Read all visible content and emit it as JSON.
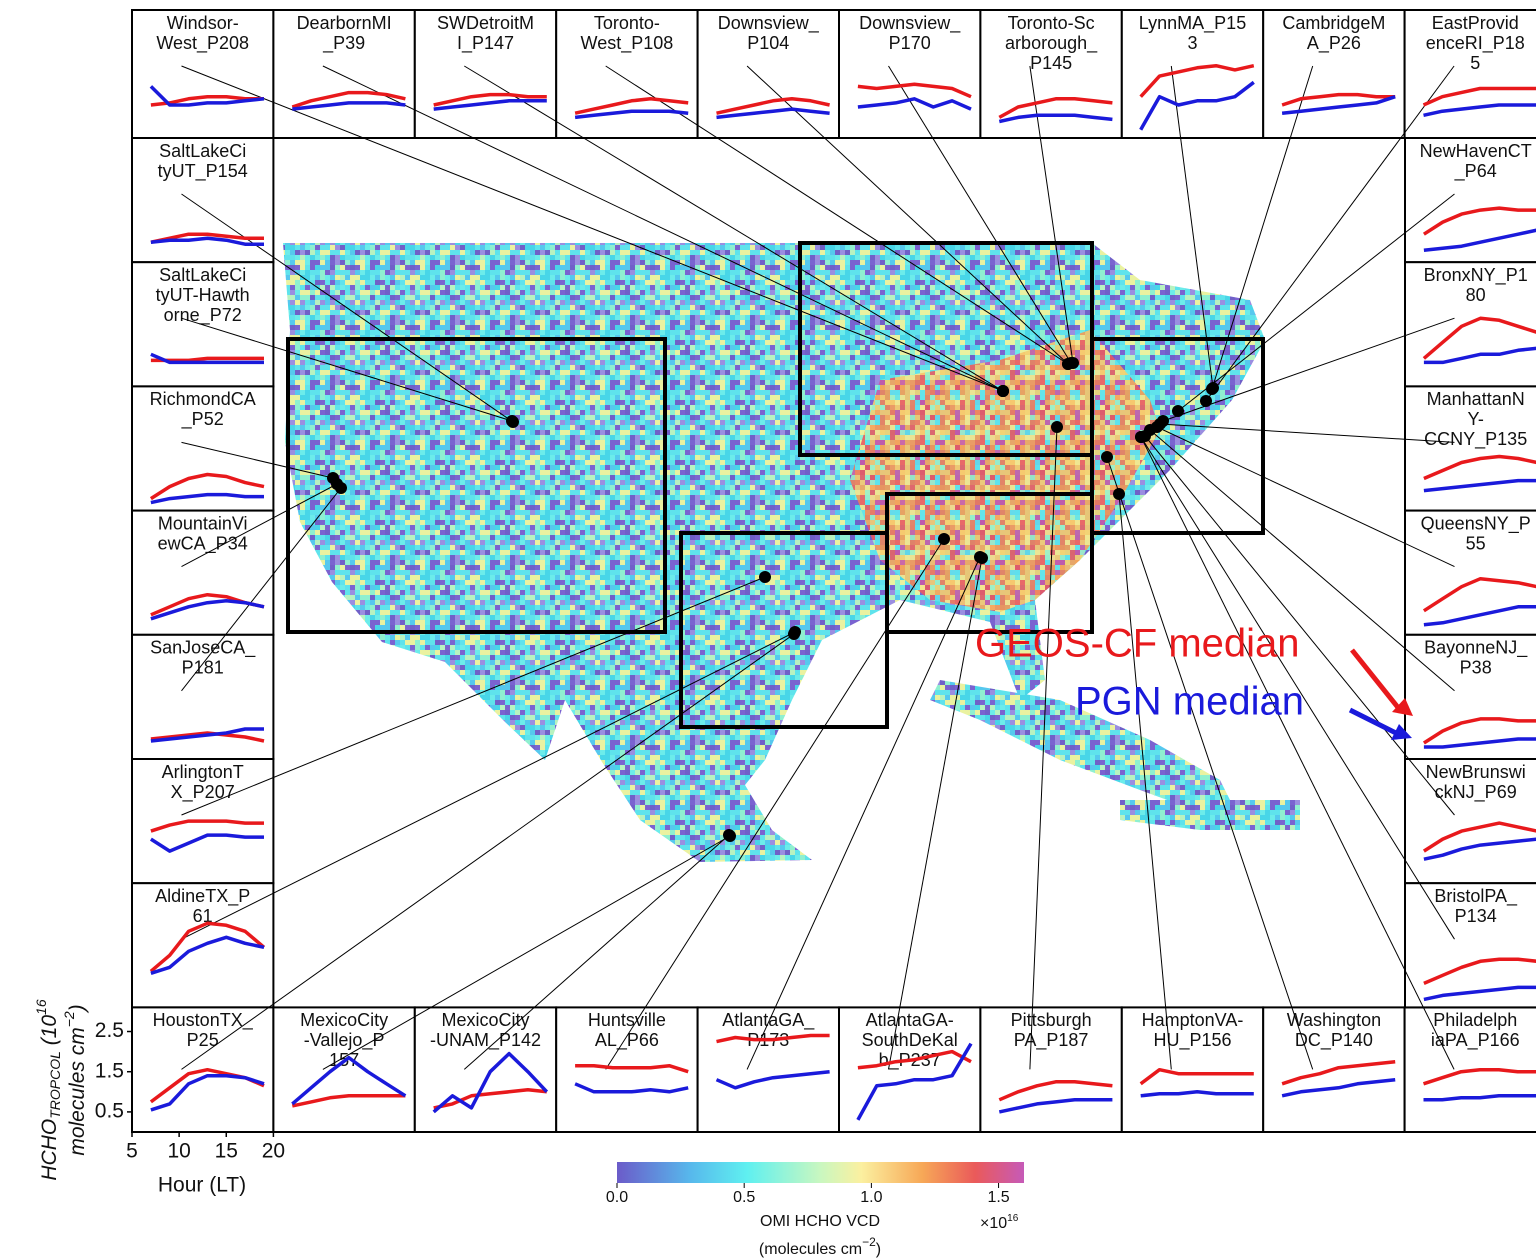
{
  "chart_data": {
    "type": "line",
    "x": [
      7,
      9,
      11,
      13,
      15,
      17,
      19
    ],
    "xlim": [
      5,
      20
    ],
    "xticks": [
      5,
      10,
      15,
      20
    ],
    "ylim": [
      0,
      3.1
    ],
    "yticks": [
      0.5,
      1.5,
      2.5
    ],
    "x_label": "Hour (LT)",
    "y_label": {
      "main": "HCHO",
      "sub": "TROPCOL",
      "scale": " (10",
      "scale_exp": "16",
      "units": "molecules cm",
      "units_exp": "−2",
      "units_close": ")"
    },
    "series_styles": [
      {
        "name": "GEOS-CF median",
        "color": "#e8191c"
      },
      {
        "name": "PGN median",
        "color": "#1a1adb"
      }
    ],
    "panels": [
      {
        "label_lines": [
          "Windsor-",
          "West_P208"
        ],
        "series": [
          {
            "values": [
              0.8,
              0.85,
              0.95,
              1.0,
              1.0,
              0.95,
              0.95
            ]
          },
          {
            "values": [
              1.25,
              0.8,
              0.8,
              0.85,
              0.85,
              0.9,
              0.95
            ]
          }
        ]
      },
      {
        "label_lines": [
          "DearbornMI",
          "_P39"
        ],
        "series": [
          {
            "values": [
              0.75,
              0.9,
              1.0,
              1.1,
              1.1,
              1.05,
              0.95
            ]
          },
          {
            "values": [
              0.7,
              0.75,
              0.8,
              0.85,
              0.85,
              0.85,
              0.8
            ]
          }
        ]
      },
      {
        "label_lines": [
          "SWDetroitM",
          "I_P147"
        ],
        "series": [
          {
            "values": [
              0.8,
              0.9,
              1.0,
              1.05,
              1.05,
              1.0,
              1.0
            ]
          },
          {
            "values": [
              0.7,
              0.75,
              0.8,
              0.85,
              0.9,
              0.9,
              0.9
            ]
          }
        ]
      },
      {
        "label_lines": [
          "Toronto-",
          "West_P108"
        ],
        "series": [
          {
            "values": [
              0.6,
              0.7,
              0.8,
              0.9,
              0.95,
              0.9,
              0.85
            ]
          },
          {
            "values": [
              0.5,
              0.55,
              0.6,
              0.65,
              0.65,
              0.65,
              0.6
            ]
          }
        ]
      },
      {
        "label_lines": [
          "Downsview_",
          "P104"
        ],
        "series": [
          {
            "values": [
              0.6,
              0.7,
              0.8,
              0.9,
              0.95,
              0.9,
              0.8
            ]
          },
          {
            "values": [
              0.5,
              0.55,
              0.6,
              0.65,
              0.7,
              0.65,
              0.6
            ]
          }
        ]
      },
      {
        "label_lines": [
          "Downsview_",
          "P170"
        ],
        "series": [
          {
            "values": [
              1.25,
              1.2,
              1.25,
              1.3,
              1.25,
              1.2,
              1.0
            ]
          },
          {
            "values": [
              0.75,
              0.8,
              0.85,
              0.95,
              0.75,
              0.9,
              0.7
            ]
          }
        ]
      },
      {
        "label_lines": [
          "Toronto-Sc",
          "arborough_",
          "P145"
        ],
        "series": [
          {
            "values": [
              0.5,
              0.75,
              0.85,
              0.95,
              0.95,
              0.9,
              0.85
            ]
          },
          {
            "values": [
              0.4,
              0.5,
              0.55,
              0.55,
              0.55,
              0.5,
              0.45
            ]
          }
        ]
      },
      {
        "label_lines": [
          "LynnMA_P15",
          "3"
        ],
        "series": [
          {
            "values": [
              1.0,
              1.5,
              1.6,
              1.7,
              1.75,
              1.65,
              1.75
            ]
          },
          {
            "values": [
              0.2,
              1.0,
              0.8,
              0.9,
              0.9,
              1.0,
              1.35
            ]
          }
        ]
      },
      {
        "label_lines": [
          "CambridgeM",
          "A_P26"
        ],
        "series": [
          {
            "values": [
              0.8,
              0.95,
              1.0,
              1.05,
              1.05,
              1.0,
              1.0
            ]
          },
          {
            "values": [
              0.6,
              0.65,
              0.7,
              0.75,
              0.8,
              0.85,
              1.0
            ]
          }
        ]
      },
      {
        "label_lines": [
          "EastProvid",
          "enceRI_P18",
          "5"
        ],
        "series": [
          {
            "values": [
              0.8,
              1.0,
              1.1,
              1.2,
              1.2,
              1.2,
              1.2
            ]
          },
          {
            "values": [
              0.55,
              0.65,
              0.7,
              0.75,
              0.8,
              0.8,
              0.8
            ]
          }
        ]
      },
      {
        "label_lines": [
          "SaltLakeCi",
          "tyUT_P154"
        ],
        "series": [
          {
            "values": [
              0.5,
              0.6,
              0.7,
              0.7,
              0.65,
              0.6,
              0.6
            ]
          },
          {
            "values": [
              0.5,
              0.55,
              0.55,
              0.6,
              0.55,
              0.45,
              0.45
            ]
          }
        ]
      },
      {
        "label_lines": [
          "SaltLakeCi",
          "tyUT-Hawth",
          "orne_P72"
        ],
        "series": [
          {
            "values": [
              0.65,
              0.65,
              0.65,
              0.7,
              0.7,
              0.7,
              0.7
            ]
          },
          {
            "values": [
              0.8,
              0.6,
              0.6,
              0.6,
              0.6,
              0.6,
              0.6
            ]
          }
        ]
      },
      {
        "label_lines": [
          "RichmondCA",
          "_P52"
        ],
        "series": [
          {
            "values": [
              0.3,
              0.6,
              0.8,
              0.9,
              0.85,
              0.7,
              0.6
            ]
          },
          {
            "values": [
              0.2,
              0.3,
              0.35,
              0.4,
              0.4,
              0.35,
              0.35
            ]
          }
        ]
      },
      {
        "label_lines": [
          "MountainVi",
          "ewCA_P34"
        ],
        "series": [
          {
            "values": [
              0.5,
              0.7,
              0.9,
              1.0,
              0.95,
              0.8,
              0.7
            ]
          },
          {
            "values": [
              0.4,
              0.55,
              0.7,
              0.8,
              0.85,
              0.8,
              0.7
            ]
          }
        ]
      },
      {
        "label_lines": [
          "SanJoseCA_",
          "P181"
        ],
        "series": [
          {
            "values": [
              0.5,
              0.55,
              0.6,
              0.65,
              0.6,
              0.55,
              0.45
            ]
          },
          {
            "values": [
              0.45,
              0.5,
              0.55,
              0.6,
              0.65,
              0.75,
              0.75
            ]
          }
        ]
      },
      {
        "label_lines": [
          "ArlingtonT",
          "X_P207"
        ],
        "series": [
          {
            "values": [
              1.3,
              1.45,
              1.55,
              1.55,
              1.55,
              1.5,
              1.5
            ]
          },
          {
            "values": [
              1.1,
              0.8,
              1.0,
              1.2,
              1.2,
              1.15,
              1.15
            ]
          }
        ]
      },
      {
        "label_lines": [
          "AldineTX_P",
          "61"
        ],
        "series": [
          {
            "values": [
              0.9,
              1.3,
              1.9,
              2.1,
              2.05,
              1.9,
              1.5
            ]
          },
          {
            "values": [
              0.85,
              1.0,
              1.4,
              1.6,
              1.75,
              1.6,
              1.5
            ]
          }
        ]
      },
      {
        "label_lines": [
          "HoustonTX_",
          "P25"
        ],
        "series": [
          {
            "values": [
              0.75,
              1.1,
              1.45,
              1.55,
              1.45,
              1.35,
              1.15
            ]
          },
          {
            "values": [
              0.55,
              0.7,
              1.2,
              1.4,
              1.4,
              1.35,
              1.2
            ]
          }
        ]
      },
      {
        "label_lines": [
          "MexicoCity",
          "-Vallejo_P",
          "157"
        ],
        "series": [
          {
            "values": [
              0.65,
              0.75,
              0.85,
              0.9,
              0.9,
              0.9,
              0.9
            ]
          },
          {
            "values": [
              0.7,
              1.1,
              1.5,
              1.85,
              1.5,
              1.2,
              0.9
            ]
          }
        ]
      },
      {
        "label_lines": [
          "MexicoCity",
          "-UNAM_P142"
        ],
        "series": [
          {
            "values": [
              0.6,
              0.7,
              0.9,
              0.95,
              1.0,
              1.05,
              1.0
            ]
          },
          {
            "values": [
              0.5,
              0.9,
              0.6,
              1.5,
              1.95,
              1.5,
              1.0
            ]
          }
        ]
      },
      {
        "label_lines": [
          "Huntsville",
          "AL_P66"
        ],
        "series": [
          {
            "values": [
              1.65,
              1.65,
              1.6,
              1.6,
              1.6,
              1.65,
              1.5
            ]
          },
          {
            "values": [
              1.2,
              1.0,
              1.0,
              1.0,
              1.05,
              1.0,
              1.1
            ]
          }
        ]
      },
      {
        "label_lines": [
          "AtlantaGA_",
          "P173"
        ],
        "series": [
          {
            "values": [
              2.25,
              2.35,
              2.3,
              2.3,
              2.35,
              2.4,
              2.4
            ]
          },
          {
            "values": [
              1.3,
              1.1,
              1.25,
              1.35,
              1.4,
              1.45,
              1.5
            ]
          }
        ]
      },
      {
        "label_lines": [
          "AtlantaGA-",
          "SouthDeKal",
          "b_P237"
        ],
        "series": [
          {
            "values": [
              1.6,
              1.65,
              1.75,
              1.8,
              1.9,
              2.0,
              1.75
            ]
          },
          {
            "values": [
              0.3,
              1.15,
              1.2,
              1.3,
              1.3,
              1.4,
              2.2
            ]
          }
        ]
      },
      {
        "label_lines": [
          "Pittsburgh",
          "PA_P187"
        ],
        "series": [
          {
            "values": [
              0.8,
              1.0,
              1.15,
              1.25,
              1.25,
              1.2,
              1.15
            ]
          },
          {
            "values": [
              0.5,
              0.6,
              0.7,
              0.75,
              0.8,
              0.8,
              0.8
            ]
          }
        ]
      },
      {
        "label_lines": [
          "HamptonVA-",
          "HU_P156"
        ],
        "series": [
          {
            "values": [
              1.2,
              1.55,
              1.45,
              1.45,
              1.45,
              1.45,
              1.45
            ]
          },
          {
            "values": [
              0.9,
              0.95,
              0.95,
              1.0,
              0.95,
              0.95,
              0.95
            ]
          }
        ]
      },
      {
        "label_lines": [
          "Washington",
          "DC_P140"
        ],
        "series": [
          {
            "values": [
              1.2,
              1.35,
              1.45,
              1.6,
              1.65,
              1.7,
              1.75
            ]
          },
          {
            "values": [
              0.9,
              1.0,
              1.05,
              1.1,
              1.2,
              1.25,
              1.3
            ]
          }
        ]
      },
      {
        "label_lines": [
          "Philadelph",
          "iaPA_P166"
        ],
        "series": [
          {
            "values": [
              1.2,
              1.35,
              1.5,
              1.55,
              1.55,
              1.5,
              1.5
            ]
          },
          {
            "values": [
              0.8,
              0.8,
              0.85,
              0.85,
              0.9,
              0.9,
              0.9
            ]
          }
        ]
      },
      {
        "label_lines": [
          "NewHavenCT",
          "_P64"
        ],
        "series": [
          {
            "values": [
              0.7,
              1.0,
              1.2,
              1.3,
              1.35,
              1.3,
              1.3
            ]
          },
          {
            "values": [
              0.3,
              0.35,
              0.4,
              0.5,
              0.6,
              0.7,
              0.8
            ]
          }
        ]
      },
      {
        "label_lines": [
          "BronxNY_P1",
          "80"
        ],
        "series": [
          {
            "values": [
              0.7,
              1.1,
              1.5,
              1.7,
              1.65,
              1.5,
              1.35
            ]
          },
          {
            "values": [
              0.6,
              0.6,
              0.7,
              0.8,
              0.8,
              0.9,
              0.95
            ]
          }
        ]
      },
      {
        "label_lines": [
          "ManhattanN",
          "Y-",
          "CCNY_P135"
        ],
        "series": [
          {
            "values": [
              0.8,
              1.0,
              1.2,
              1.3,
              1.35,
              1.3,
              1.2
            ]
          },
          {
            "values": [
              0.5,
              0.55,
              0.6,
              0.65,
              0.7,
              0.75,
              0.75
            ]
          }
        ]
      },
      {
        "label_lines": [
          "QueensNY_P",
          "55"
        ],
        "series": [
          {
            "values": [
              0.6,
              0.9,
              1.2,
              1.4,
              1.35,
              1.3,
              1.2
            ]
          },
          {
            "values": [
              0.25,
              0.3,
              0.4,
              0.5,
              0.6,
              0.7,
              0.7
            ]
          }
        ]
      },
      {
        "label_lines": [
          "BayonneNJ_",
          "P38"
        ],
        "series": [
          {
            "values": [
              0.4,
              0.7,
              0.9,
              1.0,
              1.0,
              0.95,
              0.95
            ]
          },
          {
            "values": [
              0.3,
              0.3,
              0.35,
              0.4,
              0.45,
              0.5,
              0.5
            ]
          }
        ]
      },
      {
        "label_lines": [
          "NewBrunswi",
          "ckNJ_P69"
        ],
        "series": [
          {
            "values": [
              0.8,
              1.1,
              1.3,
              1.4,
              1.5,
              1.4,
              1.3
            ]
          },
          {
            "values": [
              0.6,
              0.7,
              0.85,
              0.95,
              1.0,
              1.05,
              1.1
            ]
          }
        ]
      },
      {
        "label_lines": [
          "BristolPA_",
          "P134"
        ],
        "series": [
          {
            "values": [
              0.6,
              0.8,
              1.0,
              1.15,
              1.2,
              1.2,
              1.15
            ]
          },
          {
            "values": [
              0.2,
              0.3,
              0.35,
              0.4,
              0.45,
              0.5,
              0.5
            ]
          }
        ]
      }
    ],
    "colorbar": {
      "lim": [
        0,
        1.6
      ],
      "ticks": [
        {
          "value": 0,
          "label": "0.0"
        },
        0.5,
        {
          "value": 1,
          "label": "1.0"
        },
        1.5
      ],
      "label": "OMI HCHO VCD",
      "units": "(molecules cm",
      "units_exp": "−2",
      "units_close": ")",
      "scale": "×10",
      "scale_exp": "16"
    }
  }
}
